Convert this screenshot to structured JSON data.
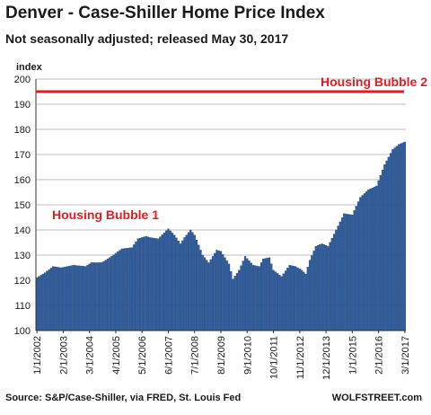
{
  "header": {
    "title": "Denver  - Case-Shiller Home Price Index",
    "subtitle": "Not seasonally adjusted; released May 30, 2017"
  },
  "footer": {
    "source": "Source: S&P/Case-Shiller, via FRED,  St. Louis Fed",
    "brand": "WOLFSTREET.com"
  },
  "colors": {
    "bar": "#2e5d9e",
    "bar_edge": "#1f3f70",
    "annotation": "#e31b23",
    "grid": "#bfbfbf"
  },
  "chart_data": {
    "type": "bar",
    "title": "Denver  - Case-Shiller Home Price Index",
    "subtitle": "Not seasonally adjusted; released May 30, 2017",
    "ylabel": "index",
    "xlabel": "",
    "ylim": [
      100,
      200
    ],
    "yticks": [
      100,
      110,
      120,
      130,
      140,
      150,
      160,
      170,
      180,
      190,
      200
    ],
    "grid": true,
    "start": "1/1/2002",
    "end": "3/1/2017",
    "frequency": "monthly",
    "xtick_labels": [
      "1/1/2002",
      "2/1/2003",
      "3/1/2004",
      "4/1/2005",
      "5/1/2006",
      "6/1/2007",
      "7/1/2008",
      "8/1/2009",
      "9/1/2010",
      "10/1/2011",
      "11/1/2012",
      "12/1/2013",
      "1/1/2015",
      "2/1/2016",
      "3/1/2017"
    ],
    "series": [
      {
        "keypoints": [
          [
            "1/1/2002",
            121
          ],
          [
            "5/1/2002",
            123
          ],
          [
            "9/1/2002",
            125.5
          ],
          [
            "1/1/2003",
            125
          ],
          [
            "4/1/2003",
            125.5
          ],
          [
            "7/1/2003",
            126
          ],
          [
            "1/1/2004",
            125.5
          ],
          [
            "4/1/2004",
            127
          ],
          [
            "9/1/2004",
            127
          ],
          [
            "1/1/2005",
            129
          ],
          [
            "7/1/2005",
            132.5
          ],
          [
            "12/1/2005",
            133
          ],
          [
            "3/1/2006",
            136.5
          ],
          [
            "7/1/2006",
            137.5
          ],
          [
            "9/1/2006",
            137
          ],
          [
            "1/1/2007",
            136.5
          ],
          [
            "6/1/2007",
            140.5
          ],
          [
            "9/1/2007",
            138
          ],
          [
            "12/1/2007",
            134.5
          ],
          [
            "2/1/2008",
            137
          ],
          [
            "5/1/2008",
            140
          ],
          [
            "7/1/2008",
            138
          ],
          [
            "11/1/2008",
            130
          ],
          [
            "2/1/2009",
            127
          ],
          [
            "6/1/2009",
            132
          ],
          [
            "8/1/2009",
            131.5
          ],
          [
            "12/1/2009",
            126.5
          ],
          [
            "2/1/2010",
            120.5
          ],
          [
            "5/1/2010",
            124
          ],
          [
            "8/1/2010",
            129.5
          ],
          [
            "12/1/2010",
            126
          ],
          [
            "3/1/2011",
            125.5
          ],
          [
            "5/1/2011",
            128.5
          ],
          [
            "8/1/2011",
            129
          ],
          [
            "10/1/2011",
            124
          ],
          [
            "2/1/2012",
            121.5
          ],
          [
            "6/1/2012",
            126
          ],
          [
            "9/1/2012",
            125.5
          ],
          [
            "12/1/2012",
            124
          ],
          [
            "2/1/2013",
            122.5
          ],
          [
            "4/1/2013",
            128
          ],
          [
            "7/1/2013",
            133.5
          ],
          [
            "10/1/2013",
            134.5
          ],
          [
            "1/1/2014",
            133.5
          ],
          [
            "5/1/2014",
            140
          ],
          [
            "9/1/2014",
            146.5
          ],
          [
            "1/1/2015",
            146
          ],
          [
            "5/1/2015",
            153
          ],
          [
            "9/1/2015",
            156
          ],
          [
            "1/1/2016",
            157.5
          ],
          [
            "5/1/2016",
            166
          ],
          [
            "9/1/2016",
            172
          ],
          [
            "12/1/2016",
            174
          ],
          [
            "3/1/2017",
            175
          ]
        ]
      }
    ],
    "annotations": [
      {
        "text": "Housing Bubble 2",
        "y": 195
      },
      {
        "text": "Housing Bubble 1",
        "y": 146
      }
    ]
  }
}
